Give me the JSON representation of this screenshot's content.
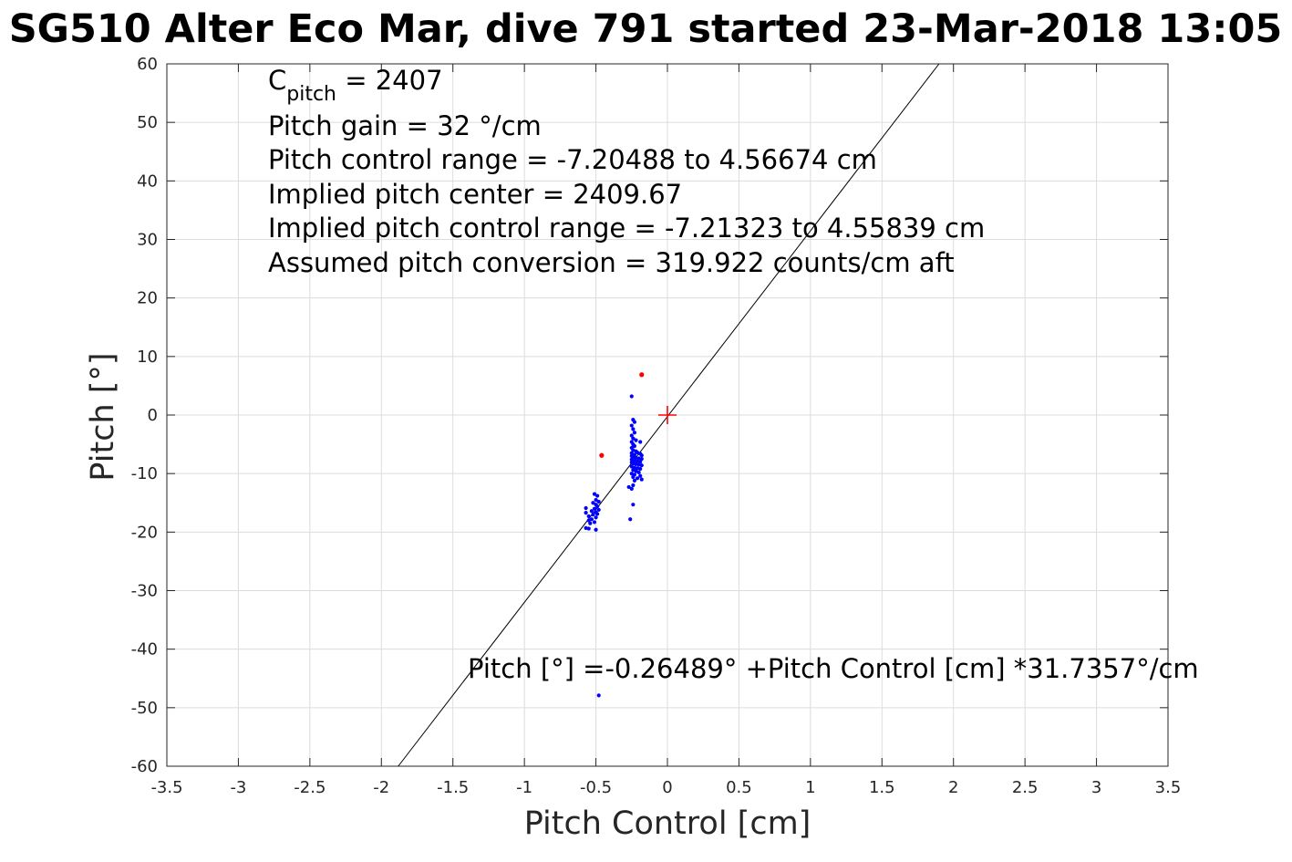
{
  "chart_data": {
    "type": "scatter",
    "title": "SG510 Alter Eco Mar, dive 791 started 23-Mar-2018 13:05",
    "xlabel": "Pitch Control [cm]",
    "ylabel": "Pitch [°]",
    "xlim": [
      -3.5,
      3.5
    ],
    "ylim": [
      -60,
      60
    ],
    "grid": true,
    "x_ticks": [
      -3.5,
      -3,
      -2.5,
      -2,
      -1.5,
      -1,
      -0.5,
      0,
      0.5,
      1,
      1.5,
      2,
      2.5,
      3,
      3.5
    ],
    "x_tick_labels": [
      "-3.5",
      "-3",
      "-2.5",
      "-2",
      "-1.5",
      "-1",
      "-0.5",
      "0",
      "0.5",
      "1",
      "1.5",
      "2",
      "2.5",
      "3",
      "3.5"
    ],
    "y_ticks": [
      60,
      50,
      40,
      30,
      20,
      10,
      0,
      -10,
      -20,
      -30,
      -40,
      -50,
      -60
    ],
    "y_tick_labels": [
      "60",
      "50",
      "40",
      "30",
      "20",
      "10",
      "0",
      "-10",
      "-20",
      "-30",
      "-40",
      "-50",
      "-60"
    ],
    "fit_line": {
      "intercept": -0.26489,
      "slope": 31.7357,
      "color": "#000000",
      "label": "Pitch [°] =-0.26489° +Pitch Control [cm] *31.7357°/cm"
    },
    "center_marker": {
      "x": 0,
      "y": 0,
      "color": "#ff0000",
      "symbol": "+"
    },
    "series": [
      {
        "color": "#0000ff",
        "points": [
          [
            -0.25,
            3.2
          ],
          [
            -0.24,
            -0.8
          ],
          [
            -0.23,
            -1.2
          ],
          [
            -0.25,
            -1.8
          ],
          [
            -0.24,
            -2.4
          ],
          [
            -0.23,
            -3.0
          ],
          [
            -0.25,
            -3.5
          ],
          [
            -0.24,
            -4.0
          ],
          [
            -0.22,
            -4.3
          ],
          [
            -0.25,
            -4.6
          ],
          [
            -0.24,
            -5.0
          ],
          [
            -0.23,
            -5.3
          ],
          [
            -0.19,
            -4.6
          ],
          [
            -0.25,
            -5.6
          ],
          [
            -0.24,
            -6.0
          ],
          [
            -0.22,
            -6.2
          ],
          [
            -0.21,
            -6.4
          ],
          [
            -0.19,
            -6.6
          ],
          [
            -0.25,
            -6.5
          ],
          [
            -0.23,
            -6.8
          ],
          [
            -0.18,
            -6.9
          ],
          [
            -0.25,
            -7.0
          ],
          [
            -0.24,
            -7.2
          ],
          [
            -0.22,
            -7.3
          ],
          [
            -0.2,
            -7.4
          ],
          [
            -0.18,
            -7.5
          ],
          [
            -0.25,
            -7.6
          ],
          [
            -0.23,
            -7.8
          ],
          [
            -0.21,
            -7.9
          ],
          [
            -0.19,
            -8.0
          ],
          [
            -0.25,
            -8.1
          ],
          [
            -0.24,
            -8.3
          ],
          [
            -0.22,
            -8.4
          ],
          [
            -0.2,
            -8.5
          ],
          [
            -0.18,
            -8.6
          ],
          [
            -0.25,
            -8.8
          ],
          [
            -0.23,
            -9.0
          ],
          [
            -0.21,
            -9.1
          ],
          [
            -0.19,
            -9.2
          ],
          [
            -0.24,
            -9.4
          ],
          [
            -0.22,
            -9.6
          ],
          [
            -0.2,
            -9.8
          ],
          [
            -0.25,
            -10.0
          ],
          [
            -0.23,
            -10.2
          ],
          [
            -0.19,
            -10.4
          ],
          [
            -0.24,
            -10.6
          ],
          [
            -0.21,
            -10.8
          ],
          [
            -0.18,
            -11.0
          ],
          [
            -0.23,
            -11.2
          ],
          [
            -0.24,
            -12.0
          ],
          [
            -0.27,
            -12.3
          ],
          [
            -0.25,
            -12.6
          ],
          [
            -0.24,
            -15.3
          ],
          [
            -0.26,
            -17.8
          ],
          [
            -0.51,
            -13.5
          ],
          [
            -0.49,
            -13.8
          ],
          [
            -0.5,
            -14.5
          ],
          [
            -0.48,
            -14.8
          ],
          [
            -0.52,
            -15.0
          ],
          [
            -0.5,
            -15.3
          ],
          [
            -0.49,
            -15.6
          ],
          [
            -0.57,
            -15.9
          ],
          [
            -0.51,
            -16.0
          ],
          [
            -0.48,
            -16.2
          ],
          [
            -0.53,
            -16.4
          ],
          [
            -0.5,
            -16.6
          ],
          [
            -0.57,
            -16.7
          ],
          [
            -0.49,
            -16.9
          ],
          [
            -0.52,
            -17.0
          ],
          [
            -0.55,
            -17.3
          ],
          [
            -0.5,
            -17.5
          ],
          [
            -0.53,
            -17.8
          ],
          [
            -0.55,
            -18.0
          ],
          [
            -0.51,
            -18.3
          ],
          [
            -0.54,
            -18.5
          ],
          [
            -0.57,
            -19.3
          ],
          [
            -0.55,
            -19.4
          ],
          [
            -0.5,
            -19.6
          ],
          [
            -0.48,
            -47.9
          ]
        ]
      },
      {
        "color": "#ff0000",
        "points": [
          [
            -0.18,
            6.9
          ],
          [
            -0.46,
            -6.9
          ]
        ]
      }
    ],
    "annotations": [
      {
        "id": "cpitch",
        "main": "C",
        "sub": "pitch",
        "rest": " = 2407"
      },
      {
        "id": "gain",
        "text": "Pitch gain = 32 °/cm"
      },
      {
        "id": "range",
        "text": "Pitch control range = -7.20488 to 4.56674 cm"
      },
      {
        "id": "center",
        "text": "Implied pitch center = 2409.67"
      },
      {
        "id": "implied_range",
        "text": "Implied pitch control range = -7.21323 to 4.55839 cm"
      },
      {
        "id": "conversion",
        "text": "Assumed pitch conversion = 319.922 counts/cm aft"
      }
    ]
  }
}
